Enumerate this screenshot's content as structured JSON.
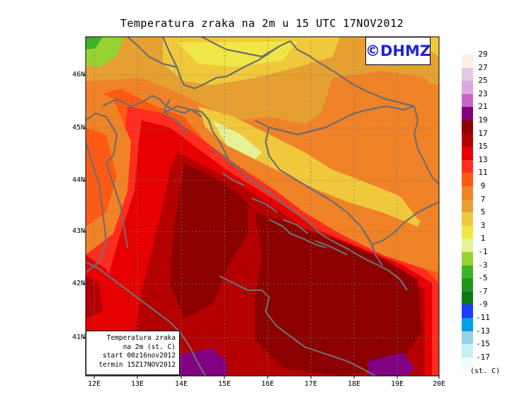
{
  "title": "Temperatura zraka na 2m u 15 UTC 17NOV2012",
  "logo": "©DHMZ",
  "info_box": {
    "line1": "Temperatura zraka",
    "line2": "na 2m (st. C)",
    "line3": "start 00z16nov2012",
    "line4": "termin 15Z17NOV2012"
  },
  "lat_labels": [
    "46N",
    "45N",
    "44N",
    "43N",
    "42N",
    "41N"
  ],
  "lon_labels": [
    "12E",
    "13E",
    "14E",
    "15E",
    "16E",
    "17E",
    "18E",
    "19E",
    "20E"
  ],
  "legend": {
    "unit": "(st. C)",
    "labels": [
      "29",
      "27",
      "25",
      "23",
      "21",
      "19",
      "17",
      "15",
      "13",
      "11",
      "9",
      "7",
      "5",
      "3",
      "1",
      "-1",
      "-3",
      "-5",
      "-7",
      "-9",
      "-11",
      "-13",
      "-15",
      "-17"
    ],
    "colors": [
      "#fff0e6",
      "#e6c8e6",
      "#e1a5e1",
      "#c864c8",
      "#820082",
      "#8c0000",
      "#b40000",
      "#e60000",
      "#ff2d1e",
      "#ff5a14",
      "#f08228",
      "#e6a032",
      "#f0c83c",
      "#f0e646",
      "#e6f096",
      "#96d232",
      "#3cb428",
      "#1e961e",
      "#0f7814",
      "#1e3cff",
      "#00a0e6",
      "#96d2e6",
      "#c8f0f0",
      "#f0fffe"
    ]
  },
  "colors": {
    "coastline": "#6e6e6e",
    "logo_text": "#1f24d6"
  }
}
